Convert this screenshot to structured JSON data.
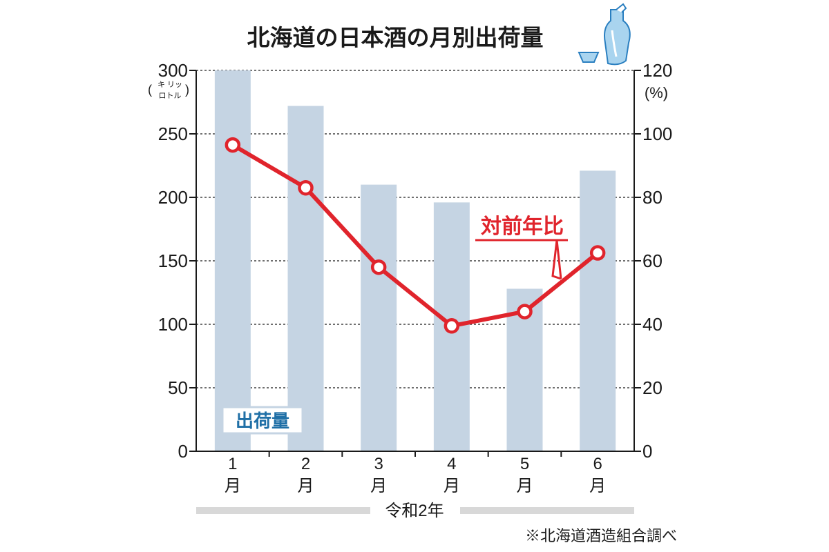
{
  "chart_data": {
    "type": "bar",
    "title": "北海道の日本酒の月別出荷量",
    "categories": [
      "1",
      "2",
      "3",
      "4",
      "5",
      "6"
    ],
    "category_unit": "月",
    "x_caption": "令和2年",
    "y_left": {
      "ticks": [
        "300",
        "250",
        "200",
        "150",
        "100",
        "50",
        "0"
      ],
      "unit_open": "(",
      "unit_top": "キ リッ",
      "unit_bottom": "ロトル",
      "unit_close": ")",
      "ylim": [
        0,
        300
      ]
    },
    "y_right": {
      "ticks": [
        "120",
        "100",
        "80",
        "60",
        "40",
        "20",
        "0"
      ],
      "unit": "(%)",
      "ylim": [
        0,
        120
      ]
    },
    "series": [
      {
        "name": "出荷量",
        "kind": "bar",
        "color": "#c5d4e3",
        "values": [
          300,
          272,
          210,
          196,
          128,
          221
        ]
      },
      {
        "name": "対前年比",
        "kind": "line",
        "axis": "right",
        "color": "#e0242c",
        "values": [
          96.5,
          83,
          58,
          39.5,
          44,
          62.5
        ]
      }
    ],
    "grid": true,
    "source": "※北海道酒造組合調べ"
  }
}
